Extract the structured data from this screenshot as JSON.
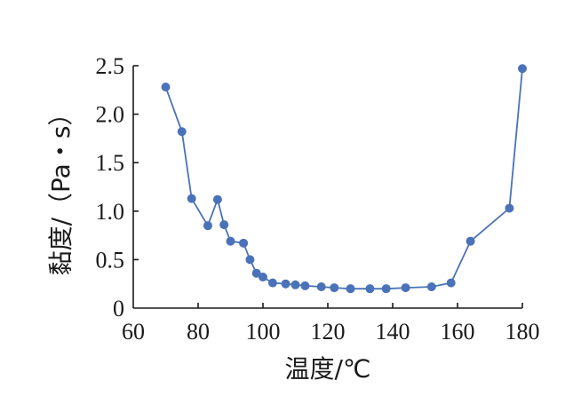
{
  "chart_data": {
    "type": "line",
    "title": "",
    "xlabel": "温度/℃",
    "ylabel": "黏度/（Pa・s）",
    "xlim": [
      60,
      180
    ],
    "ylim": [
      0,
      2.5
    ],
    "xticks": [
      "60",
      "80",
      "100",
      "120",
      "140",
      "160",
      "180"
    ],
    "yticks": [
      "0",
      "0.5",
      "1.0",
      "1.5",
      "2.0",
      "2.5"
    ],
    "grid": false,
    "legend": "none",
    "series": [
      {
        "color": "#4a72b8",
        "x": [
          70,
          75,
          78,
          83,
          86,
          88,
          90,
          94,
          96,
          98,
          100,
          103,
          107,
          110,
          113,
          118,
          122,
          127,
          133,
          138,
          144,
          152,
          158,
          164,
          176,
          180
        ],
        "y": [
          2.28,
          1.82,
          1.13,
          0.85,
          1.12,
          0.86,
          0.69,
          0.67,
          0.5,
          0.36,
          0.32,
          0.26,
          0.25,
          0.24,
          0.23,
          0.22,
          0.21,
          0.2,
          0.2,
          0.2,
          0.21,
          0.22,
          0.26,
          0.69,
          1.03,
          2.47
        ]
      }
    ]
  }
}
